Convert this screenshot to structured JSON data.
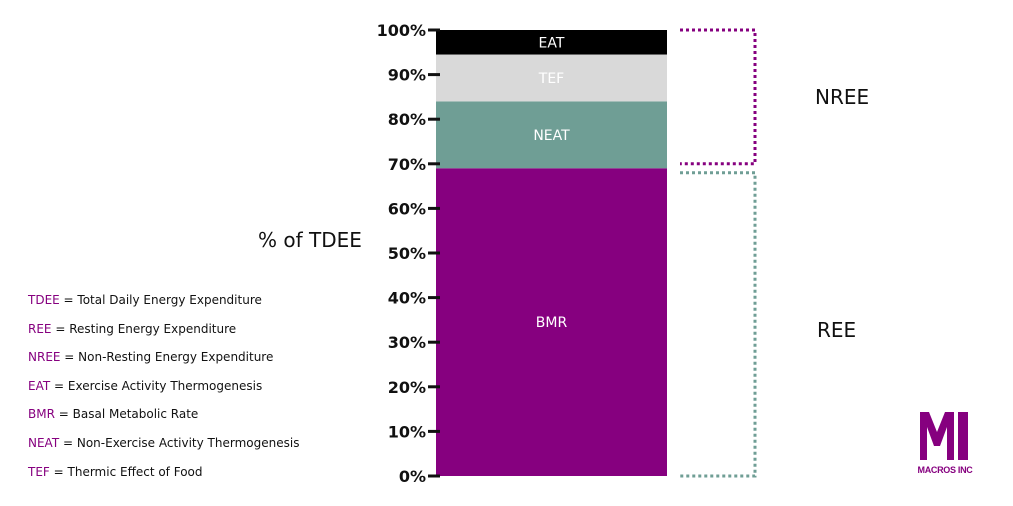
{
  "chart_data": {
    "type": "bar",
    "stacked": true,
    "ylabel": "% of TDEE",
    "ylim": [
      0,
      100
    ],
    "y_ticks": [
      "0%",
      "10%",
      "20%",
      "30%",
      "40%",
      "50%",
      "60%",
      "70%",
      "80%",
      "90%",
      "100%"
    ],
    "segments": [
      {
        "name": "BMR",
        "from": 0,
        "to": 69,
        "color": "#86007f",
        "label_color": "#ffffff"
      },
      {
        "name": "NEAT",
        "from": 69,
        "to": 84,
        "color": "#6f9e95",
        "label_color": "#ffffff"
      },
      {
        "name": "TEF",
        "from": 84,
        "to": 94.5,
        "color": "#d9d9d9",
        "label_color": "#ffffff"
      },
      {
        "name": "EAT",
        "from": 94.5,
        "to": 100,
        "color": "#000000",
        "label_color": "#ffffff"
      }
    ],
    "brackets": [
      {
        "label": "NREE",
        "from": 70,
        "to": 100,
        "color": "#86007f",
        "style": "dotted"
      },
      {
        "label": "REE",
        "from": 0,
        "to": 68,
        "color": "#6f9e95",
        "style": "dotted"
      }
    ]
  },
  "legend": [
    {
      "abbr": "TDEE",
      "text": " = Total Daily Energy Expenditure"
    },
    {
      "abbr": "REE",
      "text": " = Resting Energy Expenditure"
    },
    {
      "abbr": "NREE",
      "text": " = Non-Resting Energy Expenditure"
    },
    {
      "abbr": "EAT",
      "text": " = Exercise Activity Thermogenesis"
    },
    {
      "abbr": "BMR",
      "text": " = Basal Metabolic Rate"
    },
    {
      "abbr": "NEAT",
      "text": " = Non-Exercise Activity Thermogenesis"
    },
    {
      "abbr": "TEF",
      "text": " = Thermic Effect of Food"
    }
  ],
  "logo": {
    "mark": "MI",
    "text": "MACROS INC",
    "color": "#86007f"
  }
}
